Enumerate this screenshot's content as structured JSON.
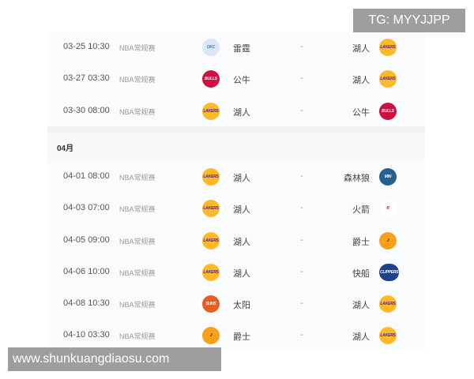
{
  "watermark_top": "TG: MYYJJPP",
  "watermark_bottom": "www.shunkuangdiaosu.com",
  "month_header": "04月",
  "team_logos": {
    "雷霆": {
      "icon": "thunder-logo",
      "color": "#3a7bd5",
      "bg": "#dbe7f7",
      "text": "OKC"
    },
    "湖人": {
      "icon": "lakers-logo",
      "color": "#552583",
      "bg": "#fdb927",
      "text": "LAKERS"
    },
    "公牛": {
      "icon": "bulls-logo",
      "color": "#ffffff",
      "bg": "#ce1141",
      "text": "BULLS"
    },
    "森林狼": {
      "icon": "timberwolves-logo",
      "color": "#ffffff",
      "bg": "#236192",
      "text": "MIN"
    },
    "火箭": {
      "icon": "rockets-logo",
      "color": "#ce1141",
      "bg": "#ffffff",
      "text": "R"
    },
    "爵士": {
      "icon": "jazz-logo",
      "color": "#002b5c",
      "bg": "#f9a01b",
      "text": "J"
    },
    "快船": {
      "icon": "clippers-logo",
      "color": "#ffffff",
      "bg": "#1d428a",
      "text": "CLIPPERS"
    },
    "太阳": {
      "icon": "suns-logo",
      "color": "#ffffff",
      "bg": "#e56020",
      "text": "SUNS"
    }
  },
  "march_games": [
    {
      "time": "03-25 10:30",
      "league": "NBA常规赛",
      "home": "雷霆",
      "score": "-",
      "away": "湖人"
    },
    {
      "time": "03-27 03:30",
      "league": "NBA常规赛",
      "home": "公牛",
      "score": "-",
      "away": "湖人"
    },
    {
      "time": "03-30 08:00",
      "league": "NBA常规赛",
      "home": "湖人",
      "score": "-",
      "away": "公牛"
    }
  ],
  "april_games": [
    {
      "time": "04-01 08:00",
      "league": "NBA常规赛",
      "home": "湖人",
      "score": "-",
      "away": "森林狼"
    },
    {
      "time": "04-03 07:00",
      "league": "NBA常规赛",
      "home": "湖人",
      "score": "-",
      "away": "火箭"
    },
    {
      "time": "04-05 09:00",
      "league": "NBA常规赛",
      "home": "湖人",
      "score": "-",
      "away": "爵士"
    },
    {
      "time": "04-06 10:00",
      "league": "NBA常规赛",
      "home": "湖人",
      "score": "-",
      "away": "快船"
    },
    {
      "time": "04-08 10:30",
      "league": "NBA常规赛",
      "home": "太阳",
      "score": "-",
      "away": "湖人"
    },
    {
      "time": "04-10 03:30",
      "league": "NBA常规赛",
      "home": "爵士",
      "score": "-",
      "away": "湖人"
    }
  ]
}
